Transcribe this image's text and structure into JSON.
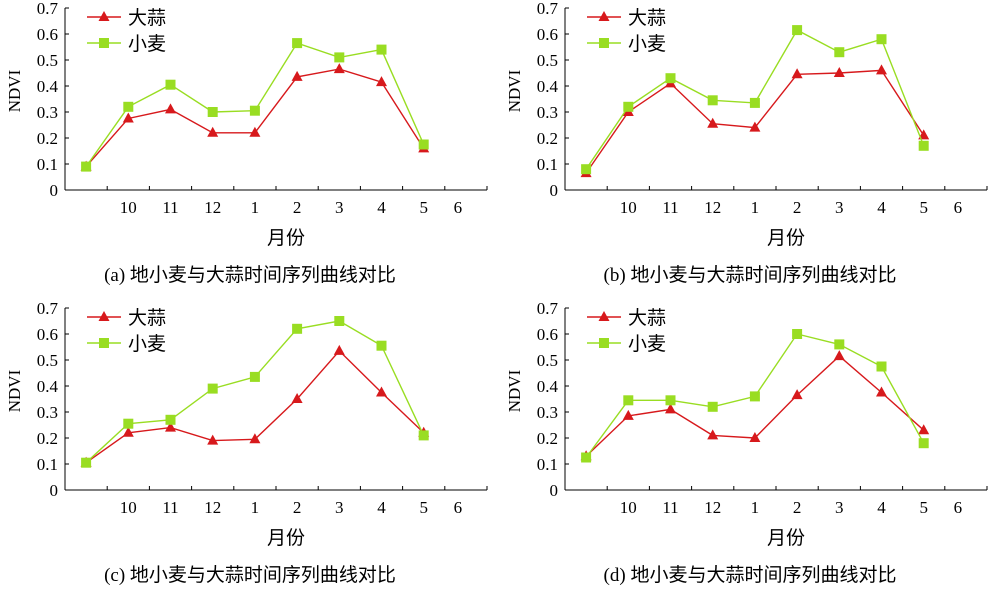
{
  "colors": {
    "garlic": "#d7191c",
    "wheat": "#99dd22",
    "axis": "#000000"
  },
  "chart_data": [
    {
      "type": "line",
      "title": "(a) 地小麦与大蒜时间序列曲线对比",
      "xlabel": "月份",
      "ylabel": "NDVI",
      "ylim": [
        0,
        0.7
      ],
      "xlim": [
        0,
        10
      ],
      "x_ticks": [
        1,
        2,
        3,
        4,
        5,
        6,
        7,
        8,
        9,
        10
      ],
      "x_tick_labels": [
        "10",
        "11",
        "12",
        "1",
        "2",
        "3",
        "4",
        "5",
        "6"
      ],
      "y_tick_labels": [
        "0",
        "0.1",
        "0.2",
        "0.3",
        "0.4",
        "0.5",
        "0.6",
        "0.7"
      ],
      "legend": "top-left",
      "grid": false,
      "x": [
        0.5,
        1.5,
        2.5,
        3.5,
        4.5,
        5.5,
        6.5,
        7.5,
        8.5
      ],
      "series": [
        {
          "name": "大蒜",
          "marker": "triangle",
          "values": [
            0.09,
            0.275,
            0.31,
            0.22,
            0.22,
            0.435,
            0.465,
            0.415,
            0.16
          ]
        },
        {
          "name": "小麦",
          "marker": "square",
          "values": [
            0.09,
            0.32,
            0.405,
            0.3,
            0.305,
            0.565,
            0.51,
            0.54,
            0.175
          ]
        }
      ]
    },
    {
      "type": "line",
      "title": "(b) 地小麦与大蒜时间序列曲线对比",
      "xlabel": "月份",
      "ylabel": "NDVI",
      "ylim": [
        0,
        0.7
      ],
      "xlim": [
        0,
        10
      ],
      "x_ticks": [
        1,
        2,
        3,
        4,
        5,
        6,
        7,
        8,
        9,
        10
      ],
      "x_tick_labels": [
        "10",
        "11",
        "12",
        "1",
        "2",
        "3",
        "4",
        "5",
        "6"
      ],
      "y_tick_labels": [
        "0",
        "0.1",
        "0.2",
        "0.3",
        "0.4",
        "0.5",
        "0.6",
        "0.7"
      ],
      "legend": "top-left",
      "grid": false,
      "x": [
        0.5,
        1.5,
        2.5,
        3.5,
        4.5,
        5.5,
        6.5,
        7.5,
        8.5
      ],
      "series": [
        {
          "name": "大蒜",
          "marker": "triangle",
          "values": [
            0.065,
            0.3,
            0.41,
            0.255,
            0.24,
            0.445,
            0.45,
            0.46,
            0.21
          ]
        },
        {
          "name": "小麦",
          "marker": "square",
          "values": [
            0.08,
            0.32,
            0.43,
            0.345,
            0.335,
            0.615,
            0.53,
            0.58,
            0.17
          ]
        }
      ]
    },
    {
      "type": "line",
      "title": "(c) 地小麦与大蒜时间序列曲线对比",
      "xlabel": "月份",
      "ylabel": "NDVI",
      "ylim": [
        0,
        0.7
      ],
      "xlim": [
        0,
        10
      ],
      "x_ticks": [
        1,
        2,
        3,
        4,
        5,
        6,
        7,
        8,
        9,
        10
      ],
      "x_tick_labels": [
        "10",
        "11",
        "12",
        "1",
        "2",
        "3",
        "4",
        "5",
        "6"
      ],
      "y_tick_labels": [
        "0",
        "0.1",
        "0.2",
        "0.3",
        "0.4",
        "0.5",
        "0.6",
        "0.7"
      ],
      "legend": "top-left",
      "grid": false,
      "x": [
        0.5,
        1.5,
        2.5,
        3.5,
        4.5,
        5.5,
        6.5,
        7.5,
        8.5
      ],
      "series": [
        {
          "name": "大蒜",
          "marker": "triangle",
          "values": [
            0.105,
            0.22,
            0.24,
            0.19,
            0.195,
            0.35,
            0.535,
            0.375,
            0.22
          ]
        },
        {
          "name": "小麦",
          "marker": "square",
          "values": [
            0.105,
            0.255,
            0.27,
            0.39,
            0.435,
            0.62,
            0.65,
            0.555,
            0.21
          ]
        }
      ]
    },
    {
      "type": "line",
      "title": "(d) 地小麦与大蒜时间序列曲线对比",
      "xlabel": "月份",
      "ylabel": "NDVI",
      "ylim": [
        0,
        0.7
      ],
      "xlim": [
        0,
        10
      ],
      "x_ticks": [
        1,
        2,
        3,
        4,
        5,
        6,
        7,
        8,
        9,
        10
      ],
      "x_tick_labels": [
        "10",
        "11",
        "12",
        "1",
        "2",
        "3",
        "4",
        "5",
        "6"
      ],
      "y_tick_labels": [
        "0",
        "0.1",
        "0.2",
        "0.3",
        "0.4",
        "0.5",
        "0.6",
        "0.7"
      ],
      "legend": "top-left",
      "grid": false,
      "x": [
        0.5,
        1.5,
        2.5,
        3.5,
        4.5,
        5.5,
        6.5,
        7.5,
        8.5
      ],
      "series": [
        {
          "name": "大蒜",
          "marker": "triangle",
          "values": [
            0.13,
            0.285,
            0.31,
            0.21,
            0.2,
            0.365,
            0.515,
            0.375,
            0.23
          ]
        },
        {
          "name": "小麦",
          "marker": "square",
          "values": [
            0.125,
            0.345,
            0.345,
            0.32,
            0.36,
            0.6,
            0.56,
            0.475,
            0.18
          ]
        }
      ]
    }
  ]
}
